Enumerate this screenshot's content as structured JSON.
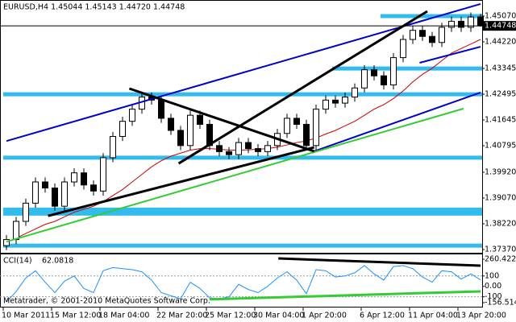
{
  "chart_data": {
    "type": "candlestick",
    "title": "EURUSD,H4  1.45044 1.45143 1.44720 1.44748",
    "categories": [
      "10 Mar 2011",
      null,
      null,
      null,
      null,
      "15 Mar 12:00",
      null,
      null,
      null,
      null,
      "18 Mar 04:00",
      null,
      null,
      null,
      null,
      null,
      "22 Mar 20:00",
      null,
      null,
      null,
      null,
      "25 Mar 12:00",
      null,
      null,
      null,
      null,
      "30 Mar 04:00",
      null,
      null,
      null,
      null,
      "1 Apr 20:00",
      null,
      null,
      null,
      null,
      null,
      "6 Apr 12:00",
      null,
      null,
      null,
      null,
      "11 Apr 04:00",
      null,
      null,
      null,
      null,
      "13 Apr 20:00",
      null,
      null
    ],
    "open": [
      1.375,
      1.377,
      1.383,
      1.389,
      1.396,
      1.394,
      1.388,
      1.396,
      1.399,
      1.395,
      1.393,
      1.404,
      1.411,
      1.416,
      1.42,
      1.424,
      1.423,
      1.417,
      1.413,
      1.408,
      1.418,
      1.415,
      1.408,
      1.406,
      1.405,
      1.409,
      1.407,
      1.406,
      1.408,
      1.412,
      1.417,
      1.415,
      1.408,
      1.42,
      1.423,
      1.422,
      1.424,
      1.427,
      1.433,
      1.431,
      1.428,
      1.437,
      1.443,
      1.446,
      1.444,
      1.442,
      1.447,
      1.449,
      1.447,
      1.45044
    ],
    "high": [
      1.3785,
      1.3845,
      1.3905,
      1.3975,
      1.3975,
      1.3955,
      1.3975,
      1.4005,
      1.4005,
      1.3965,
      1.4055,
      1.4125,
      1.4175,
      1.4215,
      1.4255,
      1.4255,
      1.4245,
      1.4185,
      1.4145,
      1.4195,
      1.4195,
      1.4165,
      1.4095,
      1.4075,
      1.4105,
      1.4105,
      1.4085,
      1.4095,
      1.4135,
      1.4185,
      1.4185,
      1.4165,
      1.4215,
      1.4245,
      1.4245,
      1.4255,
      1.4285,
      1.4345,
      1.4345,
      1.4325,
      1.4385,
      1.4445,
      1.4475,
      1.4475,
      1.4455,
      1.4485,
      1.4505,
      1.4505,
      1.4519,
      1.45143
    ],
    "low": [
      1.3735,
      1.3755,
      1.3815,
      1.3875,
      1.3925,
      1.3865,
      1.3865,
      1.3945,
      1.3935,
      1.3915,
      1.3915,
      1.4025,
      1.4095,
      1.4145,
      1.4185,
      1.4215,
      1.4155,
      1.4115,
      1.4065,
      1.4065,
      1.4135,
      1.4065,
      1.4045,
      1.4035,
      1.4035,
      1.4055,
      1.4045,
      1.4045,
      1.4065,
      1.4105,
      1.4135,
      1.4065,
      1.4065,
      1.4185,
      1.4205,
      1.4205,
      1.4225,
      1.4255,
      1.4295,
      1.4265,
      1.4265,
      1.4355,
      1.4415,
      1.4425,
      1.4405,
      1.4405,
      1.4455,
      1.4455,
      1.4455,
      1.4472
    ],
    "close": [
      1.377,
      1.383,
      1.389,
      1.396,
      1.394,
      1.388,
      1.396,
      1.399,
      1.395,
      1.393,
      1.404,
      1.411,
      1.416,
      1.42,
      1.424,
      1.423,
      1.417,
      1.413,
      1.408,
      1.418,
      1.415,
      1.408,
      1.406,
      1.405,
      1.409,
      1.407,
      1.406,
      1.408,
      1.412,
      1.417,
      1.415,
      1.408,
      1.42,
      1.423,
      1.422,
      1.424,
      1.427,
      1.433,
      1.431,
      1.428,
      1.437,
      1.443,
      1.446,
      1.444,
      1.442,
      1.447,
      1.449,
      1.447,
      1.4504,
      1.44748
    ],
    "ylim": [
      1.37264,
      1.45601
    ],
    "yticks": [
      {
        "value": 1.4507,
        "label": "1.45070"
      },
      {
        "value": 1.4422,
        "label": "1.44220"
      },
      1.43345,
      1.42495,
      1.41645,
      1.40795,
      {
        "value": 1.3992,
        "label": "1.39920"
      },
      {
        "value": 1.3907,
        "label": "1.39070"
      },
      {
        "value": 1.3822,
        "label": "1.38220"
      },
      {
        "value": 1.3737,
        "label": "1.37370"
      }
    ],
    "last_price": 1.44748,
    "ma": {
      "color": "#cc0000",
      "values": [
        1.376,
        1.3775,
        1.379,
        1.3805,
        1.382,
        1.383,
        1.3845,
        1.386,
        1.387,
        1.388,
        1.3895,
        1.3915,
        1.3935,
        1.396,
        1.3985,
        1.401,
        1.403,
        1.4045,
        1.4055,
        1.4065,
        1.407,
        1.407,
        1.4068,
        1.4065,
        1.4065,
        1.4066,
        1.4068,
        1.407,
        1.4075,
        1.4082,
        1.409,
        1.4095,
        1.4105,
        1.4118,
        1.413,
        1.4145,
        1.416,
        1.418,
        1.42,
        1.4215,
        1.4235,
        1.426,
        1.429,
        1.4315,
        1.4335,
        1.436,
        1.4385,
        1.44,
        1.4415,
        1.443
      ]
    },
    "levels": [
      {
        "price": 1.4507,
        "start": 39,
        "color": "#33bbee"
      },
      {
        "price": 1.4334,
        "start": 34,
        "color": "#33bbee"
      },
      {
        "price": 1.4249,
        "start": 0,
        "color": "#33bbee"
      },
      {
        "price": 1.404,
        "start": 0,
        "color": "#33bbee"
      },
      {
        "price": 1.3862,
        "start": 0,
        "color": "#33bbee",
        "heavy": true
      },
      {
        "price": 1.375,
        "start": 0,
        "color": "#33bbee"
      }
    ],
    "trendlines": [
      {
        "from": [
          0,
          1.4095
        ],
        "to": [
          49,
          1.4547
        ],
        "color": "#0000cc"
      },
      {
        "from": [
          31.8,
          1.4061
        ],
        "to": [
          49,
          1.4255
        ],
        "color": "#0000cc"
      },
      {
        "from": [
          42.7,
          1.4353
        ],
        "to": [
          49,
          1.4406
        ],
        "color": "#0000cc"
      },
      {
        "from": [
          0,
          1.3763
        ],
        "to": [
          47.25,
          1.4202
        ],
        "color": "#33cc33"
      },
      {
        "from": [
          4.3,
          1.3848
        ],
        "to": [
          31.8,
          1.4074
        ],
        "color": "#000000"
      },
      {
        "from": [
          12.7,
          1.4268
        ],
        "to": [
          31.8,
          1.4061
        ],
        "color": "#000000"
      },
      {
        "from": [
          17.8,
          1.4021
        ],
        "to": [
          43.5,
          1.4523
        ],
        "color": "#000000"
      }
    ],
    "indicator": {
      "type": "line",
      "name": "CCI(14)",
      "color": "#1e90ff",
      "values": [
        -150,
        -50,
        80,
        150,
        40,
        -60,
        50,
        100,
        -20,
        -60,
        150,
        180,
        170,
        160,
        140,
        60,
        -60,
        -90,
        -120,
        40,
        -20,
        -110,
        -120,
        -100,
        20,
        -30,
        -60,
        0,
        80,
        140,
        60,
        -70,
        160,
        150,
        90,
        100,
        130,
        200,
        120,
        60,
        190,
        200,
        170,
        90,
        40,
        150,
        140,
        70,
        120,
        62.0818
      ],
      "ylim": [
        -203,
        307
      ],
      "yticks": [
        260.4226,
        100,
        {
          "value": 0,
          "label": "0.00"
        },
        -100,
        -156.514
      ],
      "trendlines": [
        {
          "from": [
            28.1,
            268
          ],
          "to": [
            49,
            199
          ],
          "color": "#000000"
        },
        {
          "from": [
            21,
            -125
          ],
          "to": [
            49,
            -48
          ],
          "color": "#33cc33"
        }
      ]
    },
    "copyright": "Metatrader, © 2001-2010 MetaQuotes Software Corp."
  }
}
